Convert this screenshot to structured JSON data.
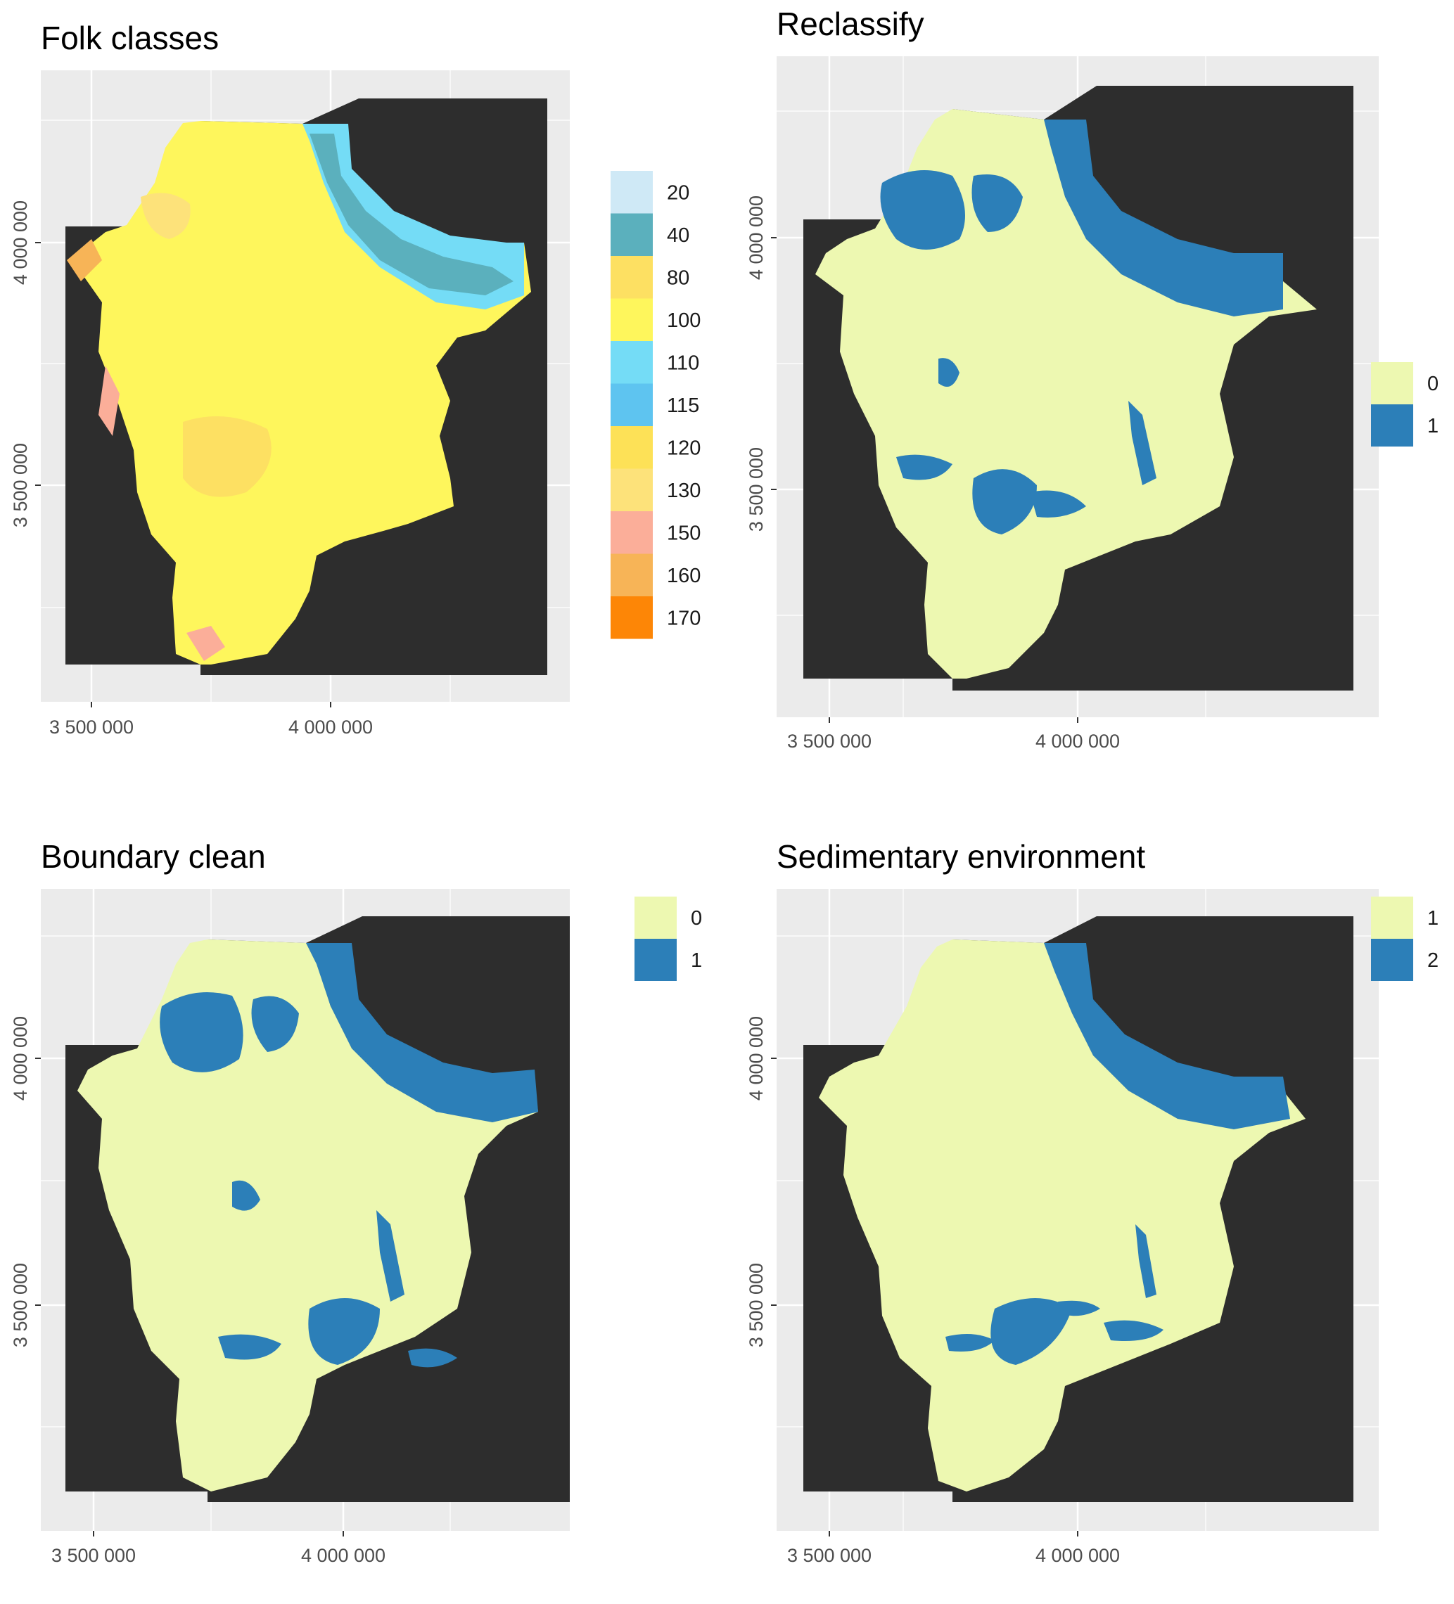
{
  "panels": [
    {
      "title": "Folk classes",
      "xticks": [
        "3 500 000",
        "4 000 000"
      ],
      "yticks": [
        "4 000 000",
        "3 500 000"
      ],
      "legend": [
        {
          "label": "20",
          "color": "#cfe9f6"
        },
        {
          "label": "40",
          "color": "#5bb0bd"
        },
        {
          "label": "80",
          "color": "#fde062"
        },
        {
          "label": "100",
          "color": "#fef65c"
        },
        {
          "label": "110",
          "color": "#74dcf6"
        },
        {
          "label": "115",
          "color": "#5ec4f0"
        },
        {
          "label": "120",
          "color": "#fde157"
        },
        {
          "label": "130",
          "color": "#fde27a"
        },
        {
          "label": "150",
          "color": "#fbae99"
        },
        {
          "label": "160",
          "color": "#f7b457"
        },
        {
          "label": "170",
          "color": "#fd8606"
        }
      ]
    },
    {
      "title": "Reclassify",
      "xticks": [
        "3 500 000",
        "4 000 000"
      ],
      "yticks": [
        "4 000 000",
        "3 500 000"
      ],
      "legend": [
        {
          "label": "0",
          "color": "#edf8b1"
        },
        {
          "label": "1",
          "color": "#2c7fb8"
        }
      ]
    },
    {
      "title": "Boundary clean",
      "xticks": [
        "3 500 000",
        "4 000 000"
      ],
      "yticks": [
        "4 000 000",
        "3 500 000"
      ],
      "legend": [
        {
          "label": "0",
          "color": "#edf8b1"
        },
        {
          "label": "1",
          "color": "#2c7fb8"
        }
      ]
    },
    {
      "title": "Sedimentary environment",
      "xticks": [
        "3 500 000",
        "4 000 000"
      ],
      "yticks": [
        "4 000 000",
        "3 500 000"
      ],
      "legend": [
        {
          "label": "1",
          "color": "#edf8b1"
        },
        {
          "label": "2",
          "color": "#2c7fb8"
        }
      ]
    }
  ],
  "colors": {
    "panel_background": "#ebebeb",
    "land": "#2d2d2d",
    "sea": "#edf8b1",
    "class_blue": "#2c7fb8",
    "folk_base": "#fef65c"
  }
}
